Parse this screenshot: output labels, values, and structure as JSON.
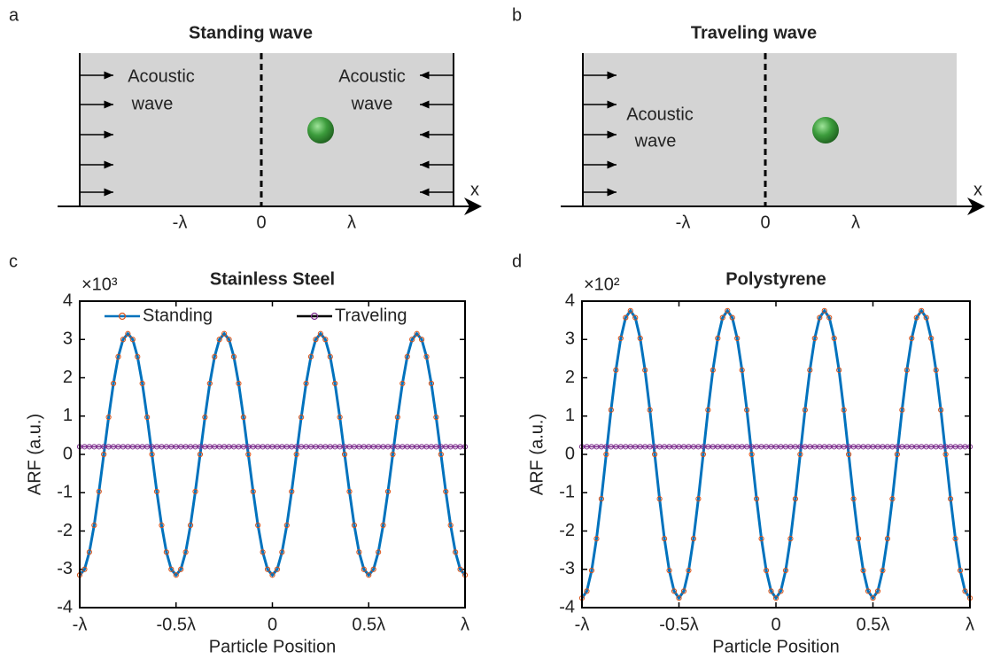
{
  "diagrams": [
    {
      "panel": "a",
      "title": "Standing wave",
      "left_text": [
        "Acoustic",
        "wave"
      ],
      "right_text": [
        "Acoustic",
        "wave"
      ],
      "axis_ticks": [
        "-λ",
        "0",
        "λ"
      ],
      "axis_name": "x"
    },
    {
      "panel": "b",
      "title": "Traveling wave",
      "left_text": [
        "Acoustic",
        "wave"
      ],
      "axis_ticks": [
        "-λ",
        "0",
        "λ"
      ],
      "axis_name": "x"
    }
  ],
  "chart_data": [
    {
      "type": "line",
      "panel": "c",
      "title": "Stainless Steel",
      "multiplier": "×10³",
      "xlabel": "Particle Position",
      "ylabel": "ARF (a.u.)",
      "legend": "top",
      "xlim": [
        -1,
        1
      ],
      "xticks": [
        {
          "value": -1,
          "label": "-λ"
        },
        {
          "value": -0.5,
          "label": "-0.5λ"
        },
        0,
        {
          "value": 0.5,
          "label": "0.5λ"
        },
        {
          "value": 1,
          "label": "λ"
        }
      ],
      "ylim": [
        -4,
        4
      ],
      "yticks": [
        -4,
        -3,
        -2,
        -1,
        0,
        1,
        2,
        3,
        4
      ],
      "x": [
        -1,
        -0.975,
        -0.95,
        -0.925,
        -0.9,
        -0.875,
        -0.85,
        -0.825,
        -0.8,
        -0.775,
        -0.75,
        -0.725,
        -0.7,
        -0.675,
        -0.65,
        -0.625,
        -0.6,
        -0.575,
        -0.55,
        -0.525,
        -0.5,
        -0.475,
        -0.45,
        -0.425,
        -0.4,
        -0.375,
        -0.35,
        -0.325,
        -0.3,
        -0.275,
        -0.25,
        -0.225,
        -0.2,
        -0.175,
        -0.15,
        -0.125,
        -0.1,
        -0.075,
        -0.05,
        -0.025,
        0,
        0.025,
        0.05,
        0.075,
        0.1,
        0.125,
        0.15,
        0.175,
        0.2,
        0.225,
        0.25,
        0.275,
        0.3,
        0.325,
        0.35,
        0.375,
        0.4,
        0.425,
        0.45,
        0.475,
        0.5,
        0.525,
        0.55,
        0.575,
        0.6,
        0.625,
        0.65,
        0.675,
        0.7,
        0.725,
        0.75,
        0.775,
        0.8,
        0.825,
        0.85,
        0.875,
        0.9,
        0.925,
        0.95,
        0.975,
        1
      ],
      "series": [
        {
          "name": "Standing",
          "color": "#0072bd",
          "marker_color": "#d95319",
          "values": [
            -3.15,
            -3,
            -2.55,
            -1.85,
            -0.97,
            0,
            0.97,
            1.85,
            2.55,
            3,
            3.15,
            3,
            2.55,
            1.85,
            0.97,
            0,
            -0.97,
            -1.85,
            -2.55,
            -3,
            -3.15,
            -3,
            -2.55,
            -1.85,
            -0.97,
            0,
            0.97,
            1.85,
            2.55,
            3,
            3.15,
            3,
            2.55,
            1.85,
            0.97,
            0,
            -0.97,
            -1.85,
            -2.55,
            -3,
            -3.15,
            -3,
            -2.55,
            -1.85,
            -0.97,
            0,
            0.97,
            1.85,
            2.55,
            3,
            3.15,
            3,
            2.55,
            1.85,
            0.97,
            0,
            -0.97,
            -1.85,
            -2.55,
            -3,
            -3.15,
            -3,
            -2.55,
            -1.85,
            -0.97,
            0,
            0.97,
            1.85,
            2.55,
            3,
            3.15,
            3,
            2.55,
            1.85,
            0.97,
            0,
            -0.97,
            -1.85,
            -2.55,
            -3,
            -3.15
          ]
        },
        {
          "name": "Traveling",
          "color": "#000000",
          "marker_color": "#7e2f8e",
          "values": [
            0.2,
            0.2,
            0.2,
            0.2,
            0.2,
            0.2,
            0.2,
            0.2,
            0.2,
            0.2,
            0.2,
            0.2,
            0.2,
            0.2,
            0.2,
            0.2,
            0.2,
            0.2,
            0.2,
            0.2,
            0.2,
            0.2,
            0.2,
            0.2,
            0.2,
            0.2,
            0.2,
            0.2,
            0.2,
            0.2,
            0.2,
            0.2,
            0.2,
            0.2,
            0.2,
            0.2,
            0.2,
            0.2,
            0.2,
            0.2,
            0.2,
            0.2,
            0.2,
            0.2,
            0.2,
            0.2,
            0.2,
            0.2,
            0.2,
            0.2,
            0.2,
            0.2,
            0.2,
            0.2,
            0.2,
            0.2,
            0.2,
            0.2,
            0.2,
            0.2,
            0.2,
            0.2,
            0.2,
            0.2,
            0.2,
            0.2,
            0.2,
            0.2,
            0.2,
            0.2,
            0.2,
            0.2,
            0.2,
            0.2,
            0.2,
            0.2,
            0.2,
            0.2,
            0.2,
            0.2,
            0.2
          ]
        }
      ]
    },
    {
      "type": "line",
      "panel": "d",
      "title": "Polystyrene",
      "multiplier": "×10²",
      "xlabel": "Particle Position",
      "ylabel": "ARF (a.u.)",
      "xlim": [
        -1,
        1
      ],
      "xticks": [
        {
          "value": -1,
          "label": "-λ"
        },
        {
          "value": -0.5,
          "label": "-0.5λ"
        },
        0,
        {
          "value": 0.5,
          "label": "0.5λ"
        },
        {
          "value": 1,
          "label": "λ"
        }
      ],
      "ylim": [
        -4,
        4
      ],
      "yticks": [
        -4,
        -3,
        -2,
        -1,
        0,
        1,
        2,
        3,
        4
      ],
      "x": [
        -1,
        -0.975,
        -0.95,
        -0.925,
        -0.9,
        -0.875,
        -0.85,
        -0.825,
        -0.8,
        -0.775,
        -0.75,
        -0.725,
        -0.7,
        -0.675,
        -0.65,
        -0.625,
        -0.6,
        -0.575,
        -0.55,
        -0.525,
        -0.5,
        -0.475,
        -0.45,
        -0.425,
        -0.4,
        -0.375,
        -0.35,
        -0.325,
        -0.3,
        -0.275,
        -0.25,
        -0.225,
        -0.2,
        -0.175,
        -0.15,
        -0.125,
        -0.1,
        -0.075,
        -0.05,
        -0.025,
        0,
        0.025,
        0.05,
        0.075,
        0.1,
        0.125,
        0.15,
        0.175,
        0.2,
        0.225,
        0.25,
        0.275,
        0.3,
        0.325,
        0.35,
        0.375,
        0.4,
        0.425,
        0.45,
        0.475,
        0.5,
        0.525,
        0.55,
        0.575,
        0.6,
        0.625,
        0.65,
        0.675,
        0.7,
        0.725,
        0.75,
        0.775,
        0.8,
        0.825,
        0.85,
        0.875,
        0.9,
        0.925,
        0.95,
        0.975,
        1
      ],
      "series": [
        {
          "color": "#0072bd",
          "marker_color": "#d95319",
          "values": [
            -3.75,
            -3.57,
            -3.03,
            -2.2,
            -1.16,
            0,
            1.16,
            2.2,
            3.03,
            3.57,
            3.75,
            3.57,
            3.03,
            2.2,
            1.16,
            0,
            -1.16,
            -2.2,
            -3.03,
            -3.57,
            -3.75,
            -3.57,
            -3.03,
            -2.2,
            -1.16,
            0,
            1.16,
            2.2,
            3.03,
            3.57,
            3.75,
            3.57,
            3.03,
            2.2,
            1.16,
            0,
            -1.16,
            -2.2,
            -3.03,
            -3.57,
            -3.75,
            -3.57,
            -3.03,
            -2.2,
            -1.16,
            0,
            1.16,
            2.2,
            3.03,
            3.57,
            3.75,
            3.57,
            3.03,
            2.2,
            1.16,
            0,
            -1.16,
            -2.2,
            -3.03,
            -3.57,
            -3.75,
            -3.57,
            -3.03,
            -2.2,
            -1.16,
            0,
            1.16,
            2.2,
            3.03,
            3.57,
            3.75,
            3.57,
            3.03,
            2.2,
            1.16,
            0,
            -1.16,
            -2.2,
            -3.03,
            -3.57,
            -3.75
          ]
        },
        {
          "color": "#000000",
          "marker_color": "#7e2f8e",
          "values": [
            0.2,
            0.2,
            0.2,
            0.2,
            0.2,
            0.2,
            0.2,
            0.2,
            0.2,
            0.2,
            0.2,
            0.2,
            0.2,
            0.2,
            0.2,
            0.2,
            0.2,
            0.2,
            0.2,
            0.2,
            0.2,
            0.2,
            0.2,
            0.2,
            0.2,
            0.2,
            0.2,
            0.2,
            0.2,
            0.2,
            0.2,
            0.2,
            0.2,
            0.2,
            0.2,
            0.2,
            0.2,
            0.2,
            0.2,
            0.2,
            0.2,
            0.2,
            0.2,
            0.2,
            0.2,
            0.2,
            0.2,
            0.2,
            0.2,
            0.2,
            0.2,
            0.2,
            0.2,
            0.2,
            0.2,
            0.2,
            0.2,
            0.2,
            0.2,
            0.2,
            0.2,
            0.2,
            0.2,
            0.2,
            0.2,
            0.2,
            0.2,
            0.2,
            0.2,
            0.2,
            0.2,
            0.2,
            0.2,
            0.2,
            0.2,
            0.2,
            0.2,
            0.2,
            0.2,
            0.2,
            0.2
          ]
        }
      ]
    }
  ]
}
